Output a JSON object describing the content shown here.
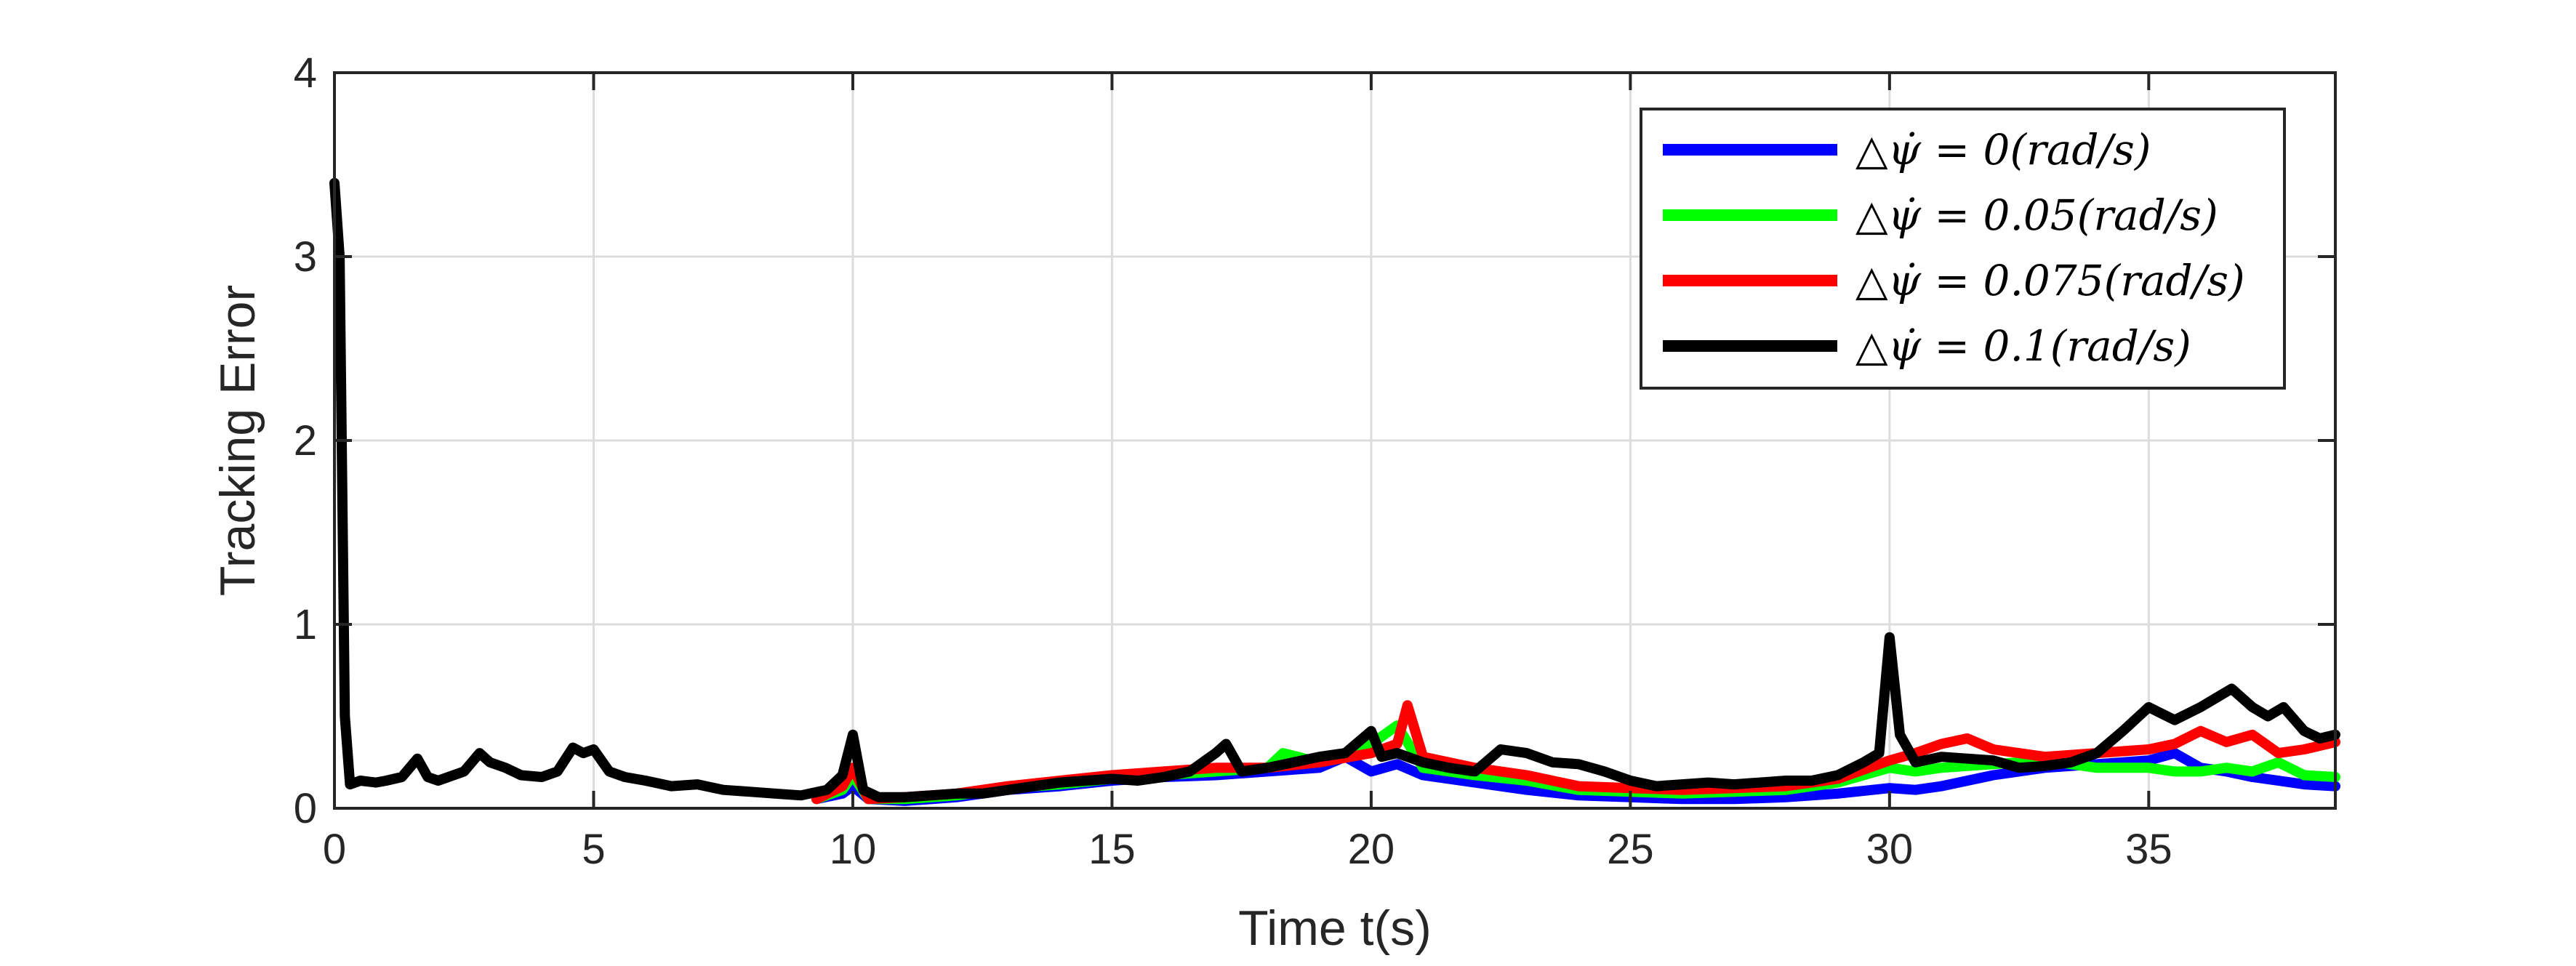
{
  "chart_data": {
    "type": "line",
    "xlabel": "Time t(s)",
    "ylabel": "Tracking Error",
    "xlim": [
      0,
      38.6
    ],
    "ylim": [
      0,
      4
    ],
    "xticks": [
      0,
      5,
      10,
      15,
      20,
      25,
      30,
      35
    ],
    "yticks": [
      0,
      1,
      2,
      3,
      4
    ],
    "grid": true,
    "legend_position": "top-right",
    "series": [
      {
        "name": "△ψ̇ = 0(rad/s)",
        "color": "#0000ff",
        "x": [
          9.3,
          9.8,
          10,
          10.3,
          11,
          12,
          13,
          14,
          15,
          16,
          17,
          18,
          19,
          19.5,
          20,
          20.5,
          21,
          22,
          23,
          24,
          25,
          26,
          27,
          28,
          29,
          30,
          30.5,
          31,
          32,
          33,
          34,
          35,
          35.5,
          36,
          36.5,
          37,
          37.5,
          38,
          38.6
        ],
        "y": [
          0.05,
          0.08,
          0.12,
          0.05,
          0.04,
          0.06,
          0.1,
          0.12,
          0.15,
          0.17,
          0.18,
          0.2,
          0.22,
          0.28,
          0.2,
          0.24,
          0.18,
          0.14,
          0.1,
          0.07,
          0.06,
          0.05,
          0.05,
          0.06,
          0.08,
          0.11,
          0.1,
          0.12,
          0.18,
          0.22,
          0.24,
          0.26,
          0.3,
          0.22,
          0.2,
          0.17,
          0.15,
          0.13,
          0.12
        ]
      },
      {
        "name": "△ψ̇ = 0.05(rad/s)",
        "color": "#00ff00",
        "x": [
          9.3,
          9.8,
          10,
          10.3,
          11,
          12,
          13,
          14,
          15,
          16,
          17,
          18,
          18.3,
          19,
          20,
          20.5,
          21,
          22,
          23,
          24,
          25,
          26,
          27,
          28,
          29,
          30,
          30.5,
          31,
          32,
          33,
          34,
          35,
          35.5,
          36,
          36.5,
          37,
          37.5,
          38,
          38.6
        ],
        "y": [
          0.05,
          0.1,
          0.18,
          0.05,
          0.05,
          0.07,
          0.11,
          0.13,
          0.16,
          0.18,
          0.2,
          0.22,
          0.3,
          0.25,
          0.35,
          0.45,
          0.22,
          0.18,
          0.15,
          0.1,
          0.09,
          0.08,
          0.09,
          0.1,
          0.14,
          0.22,
          0.2,
          0.22,
          0.24,
          0.26,
          0.22,
          0.22,
          0.2,
          0.2,
          0.22,
          0.2,
          0.25,
          0.18,
          0.17
        ]
      },
      {
        "name": "△ψ̇ = 0.075(rad/s)",
        "color": "#ff0000",
        "x": [
          9.3,
          9.8,
          10,
          10.3,
          11,
          12,
          13,
          14,
          15,
          16,
          17,
          18,
          19,
          20,
          20.5,
          20.7,
          21,
          22,
          23,
          24,
          25,
          26,
          27,
          28,
          29,
          30,
          30.5,
          31,
          31.5,
          32,
          33,
          34,
          35,
          35.5,
          36,
          36.5,
          37,
          37.5,
          38,
          38.6
        ],
        "y": [
          0.05,
          0.12,
          0.22,
          0.05,
          0.06,
          0.08,
          0.12,
          0.15,
          0.18,
          0.2,
          0.22,
          0.22,
          0.25,
          0.3,
          0.35,
          0.56,
          0.28,
          0.22,
          0.18,
          0.12,
          0.11,
          0.1,
          0.11,
          0.12,
          0.16,
          0.26,
          0.3,
          0.35,
          0.38,
          0.32,
          0.28,
          0.3,
          0.32,
          0.35,
          0.42,
          0.36,
          0.4,
          0.3,
          0.32,
          0.36
        ]
      },
      {
        "name": "△ψ̇ = 0.1(rad/s)",
        "color": "#000000",
        "x": [
          0,
          0.1,
          0.2,
          0.3,
          0.5,
          0.8,
          1,
          1.3,
          1.6,
          1.8,
          2,
          2.5,
          2.8,
          3,
          3.3,
          3.6,
          4,
          4.3,
          4.6,
          4.8,
          5,
          5.3,
          5.6,
          6,
          6.5,
          7,
          7.5,
          8,
          8.5,
          9,
          9.5,
          9.8,
          10,
          10.2,
          10.5,
          11,
          11.5,
          12,
          12.5,
          13,
          13.5,
          14,
          14.5,
          15,
          15.5,
          16,
          16.5,
          17,
          17.2,
          17.5,
          18,
          18.5,
          19,
          19.5,
          20,
          20.2,
          20.5,
          21,
          21.5,
          22,
          22.5,
          23,
          23.5,
          24,
          24.5,
          25,
          25.5,
          26,
          26.5,
          27,
          27.5,
          28,
          28.5,
          29,
          29.5,
          29.8,
          30,
          30.2,
          30.5,
          31,
          31.5,
          32,
          32.5,
          33,
          33.5,
          34,
          34.5,
          35,
          35.5,
          36,
          36.3,
          36.6,
          37,
          37.3,
          37.6,
          38,
          38.3,
          38.6
        ],
        "y": [
          3.4,
          3.0,
          0.5,
          0.13,
          0.15,
          0.14,
          0.15,
          0.17,
          0.27,
          0.17,
          0.15,
          0.2,
          0.3,
          0.25,
          0.22,
          0.18,
          0.17,
          0.2,
          0.33,
          0.3,
          0.32,
          0.2,
          0.17,
          0.15,
          0.12,
          0.13,
          0.1,
          0.09,
          0.08,
          0.07,
          0.1,
          0.18,
          0.4,
          0.1,
          0.06,
          0.06,
          0.07,
          0.08,
          0.08,
          0.1,
          0.12,
          0.14,
          0.15,
          0.16,
          0.15,
          0.17,
          0.2,
          0.3,
          0.35,
          0.2,
          0.22,
          0.25,
          0.28,
          0.3,
          0.42,
          0.28,
          0.3,
          0.25,
          0.22,
          0.2,
          0.32,
          0.3,
          0.25,
          0.24,
          0.2,
          0.15,
          0.12,
          0.13,
          0.14,
          0.13,
          0.14,
          0.15,
          0.15,
          0.18,
          0.25,
          0.3,
          0.93,
          0.4,
          0.25,
          0.28,
          0.27,
          0.26,
          0.22,
          0.23,
          0.25,
          0.3,
          0.42,
          0.55,
          0.48,
          0.55,
          0.6,
          0.65,
          0.55,
          0.5,
          0.55,
          0.42,
          0.38,
          0.4
        ]
      }
    ]
  }
}
